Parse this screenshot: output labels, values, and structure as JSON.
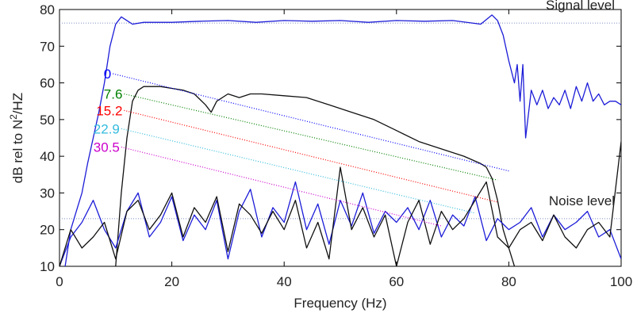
{
  "chart_data": {
    "type": "line",
    "x_label": "Frequency (Hz)",
    "y_label": [
      "dB rel to N",
      "2",
      "/HZ"
    ],
    "xlim": [
      0,
      100
    ],
    "xticks": [
      0,
      20,
      40,
      60,
      80,
      100
    ],
    "ylim": [
      10,
      80
    ],
    "yticks": [
      10,
      20,
      30,
      40,
      50,
      60,
      70,
      80
    ],
    "grid": false,
    "series": [
      {
        "color": "#1c1cd8",
        "dash": "solid",
        "x": [
          1,
          2,
          3,
          4,
          5,
          6,
          7,
          8,
          9,
          10,
          11,
          12,
          13,
          15,
          20,
          25,
          30,
          35,
          40,
          45,
          50,
          55,
          60,
          65,
          70,
          75,
          77,
          78,
          79,
          80,
          81,
          81.5,
          82,
          82.5,
          83,
          84,
          85,
          86,
          87,
          88,
          89,
          90,
          91,
          92,
          93,
          94,
          95,
          96,
          97,
          98,
          99,
          100
        ],
        "values": [
          10,
          20,
          25,
          30,
          38,
          45,
          52,
          60,
          70,
          76,
          78,
          77,
          76,
          76.5,
          76.5,
          76.8,
          77,
          76.5,
          77,
          76.8,
          77,
          76.5,
          77,
          76.8,
          77,
          76,
          78.5,
          77,
          73,
          66,
          60,
          65,
          55,
          65,
          45,
          58,
          54,
          58,
          53,
          56,
          54,
          58,
          53,
          59,
          55,
          60,
          55,
          57,
          54,
          55,
          55,
          54
        ]
      },
      {
        "color": "#111111",
        "dash": "solid",
        "x": [
          10,
          11,
          12,
          13,
          14,
          15,
          18,
          20,
          22,
          24,
          26,
          27,
          28,
          30,
          32,
          34,
          36,
          40,
          44,
          48,
          52,
          56,
          60,
          64,
          68,
          72,
          75,
          76,
          77,
          78,
          79,
          80,
          81
        ],
        "values": [
          10,
          30,
          45,
          55,
          58,
          59,
          59,
          58.5,
          58,
          57,
          54,
          52,
          55,
          57,
          56,
          57,
          57,
          56.5,
          56,
          54,
          52,
          50,
          47,
          44,
          42,
          40,
          38,
          37,
          34,
          28,
          20,
          15,
          10
        ]
      },
      {
        "color": "#1c1cd8",
        "dash": "solid",
        "x": [
          0,
          2,
          4,
          6,
          8,
          10,
          12,
          14,
          16,
          18,
          20,
          22,
          24,
          26,
          28,
          30,
          32,
          34,
          36,
          38,
          40,
          42,
          44,
          46,
          48,
          50,
          52,
          54,
          56,
          58,
          60,
          62,
          64,
          66,
          68,
          70,
          72,
          74,
          76,
          78,
          80,
          82,
          84,
          86,
          88,
          90,
          92,
          94,
          96,
          98,
          100
        ],
        "values": [
          10,
          18,
          22,
          28,
          20,
          15,
          25,
          30,
          18,
          22,
          29,
          17,
          24,
          20,
          28,
          12,
          25,
          31,
          18,
          26,
          22,
          33,
          20,
          27,
          16,
          28,
          21,
          30,
          19,
          25,
          22,
          26,
          20,
          28,
          18,
          24,
          21,
          29,
          17,
          23,
          20,
          22,
          26,
          18,
          24,
          20,
          22,
          25,
          18,
          20,
          12
        ]
      },
      {
        "color": "#111111",
        "dash": "solid",
        "x": [
          0,
          2,
          4,
          6,
          8,
          10,
          12,
          14,
          16,
          18,
          20,
          22,
          24,
          26,
          28,
          30,
          32,
          34,
          36,
          38,
          40,
          42,
          44,
          46,
          48,
          50,
          52,
          54,
          56,
          58,
          60,
          62,
          64,
          66,
          68,
          70,
          72,
          74,
          76,
          78,
          80,
          82,
          84,
          86,
          88,
          90,
          92,
          94,
          96,
          98,
          100
        ],
        "values": [
          10,
          20,
          15,
          18,
          22,
          12,
          25,
          28,
          20,
          24,
          30,
          18,
          26,
          22,
          29,
          14,
          27,
          24,
          19,
          25,
          20,
          28,
          15,
          22,
          12,
          37,
          20,
          26,
          18,
          24,
          10,
          22,
          28,
          16,
          25,
          20,
          23,
          28,
          33,
          18,
          15,
          20,
          22,
          17,
          24,
          18,
          15,
          20,
          22,
          18,
          44
        ]
      },
      {
        "name": "0",
        "color": "#0000ff",
        "dash": "dotted",
        "x": [
          9.5,
          80
        ],
        "values": [
          62.5,
          36
        ]
      },
      {
        "name": "7.6",
        "color": "#008000",
        "dash": "dotted",
        "x": [
          11.5,
          78
        ],
        "values": [
          57,
          33.5
        ]
      },
      {
        "name": "15.2",
        "color": "#ff0000",
        "dash": "dotted",
        "x": [
          11.5,
          78
        ],
        "values": [
          52.5,
          27.5
        ]
      },
      {
        "name": "22.9",
        "color": "#33bbdd",
        "dash": "dotted",
        "x": [
          11,
          74
        ],
        "values": [
          47.5,
          24.5
        ]
      },
      {
        "name": "30.5",
        "color": "#cc00cc",
        "dash": "dotted",
        "x": [
          11,
          68
        ],
        "values": [
          42.5,
          21
        ]
      }
    ],
    "reference_lines": [
      {
        "label": "Signal level",
        "value": 76.3,
        "color": "#7f8fc0"
      },
      {
        "label": "Noise level",
        "value": 23,
        "color": "#7f8fc0"
      }
    ]
  }
}
